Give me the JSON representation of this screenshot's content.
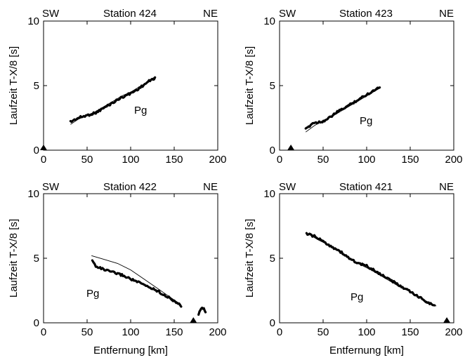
{
  "chart_data": [
    {
      "type": "line",
      "station": "Station 424",
      "left_dir": "SW",
      "right_dir": "NE",
      "phase_label": "Pg",
      "ylabel": "Laufzeit T-X/8 [s]",
      "xlabel": "",
      "xlim": [
        0,
        200
      ],
      "ylim": [
        0,
        10
      ],
      "xticks": [
        0,
        50,
        100,
        150,
        200
      ],
      "yticks": [
        0,
        5,
        10
      ],
      "source_marker_x": 0,
      "observed": [
        [
          31,
          2.2
        ],
        [
          40,
          2.5
        ],
        [
          50,
          2.7
        ],
        [
          60,
          2.9
        ],
        [
          70,
          3.3
        ],
        [
          80,
          3.7
        ],
        [
          90,
          4.1
        ],
        [
          100,
          4.4
        ],
        [
          110,
          4.8
        ],
        [
          120,
          5.3
        ],
        [
          128,
          5.6
        ]
      ],
      "model": [
        [
          31,
          2.0
        ],
        [
          40,
          2.4
        ],
        [
          50,
          2.7
        ],
        [
          60,
          3.0
        ],
        [
          70,
          3.4
        ],
        [
          80,
          3.8
        ],
        [
          90,
          4.2
        ],
        [
          100,
          4.5
        ],
        [
          110,
          4.9
        ],
        [
          120,
          5.3
        ],
        [
          128,
          5.7
        ]
      ]
    },
    {
      "type": "line",
      "station": "Station 423",
      "left_dir": "SW",
      "right_dir": "NE",
      "phase_label": "Pg",
      "ylabel": "Laufzeit T-X/8 [s]",
      "xlabel": "",
      "xlim": [
        0,
        200
      ],
      "ylim": [
        0,
        10
      ],
      "xticks": [
        0,
        50,
        100,
        150,
        200
      ],
      "yticks": [
        0,
        5,
        10
      ],
      "source_marker_x": 13,
      "observed": [
        [
          30,
          1.6
        ],
        [
          38,
          2.1
        ],
        [
          48,
          2.2
        ],
        [
          55,
          2.4
        ],
        [
          65,
          2.9
        ],
        [
          75,
          3.3
        ],
        [
          85,
          3.7
        ],
        [
          95,
          4.1
        ],
        [
          105,
          4.5
        ],
        [
          115,
          4.9
        ]
      ],
      "model": [
        [
          30,
          1.4
        ],
        [
          40,
          1.9
        ],
        [
          50,
          2.3
        ],
        [
          60,
          2.6
        ],
        [
          70,
          3.0
        ],
        [
          80,
          3.4
        ],
        [
          90,
          3.8
        ],
        [
          100,
          4.2
        ],
        [
          110,
          4.6
        ],
        [
          115,
          4.8
        ]
      ]
    },
    {
      "type": "line",
      "station": "Station 422",
      "left_dir": "SW",
      "right_dir": "NE",
      "phase_label": "Pg",
      "ylabel": "Laufzeit T-X/8 [s]",
      "xlabel": "Entfernung [km]",
      "xlim": [
        0,
        200
      ],
      "ylim": [
        0,
        10
      ],
      "xticks": [
        0,
        50,
        100,
        150,
        200
      ],
      "yticks": [
        0,
        5,
        10
      ],
      "source_marker_x": 172,
      "observed": [
        [
          56,
          4.8
        ],
        [
          60,
          4.4
        ],
        [
          70,
          4.1
        ],
        [
          80,
          3.9
        ],
        [
          90,
          3.7
        ],
        [
          100,
          3.4
        ],
        [
          110,
          3.1
        ],
        [
          120,
          2.8
        ],
        [
          130,
          2.5
        ],
        [
          140,
          2.1
        ],
        [
          150,
          1.7
        ],
        [
          158,
          1.3
        ]
      ],
      "observed_far": [
        [
          178,
          0.7
        ],
        [
          181,
          1.1
        ],
        [
          184,
          1.1
        ],
        [
          186,
          0.8
        ]
      ],
      "model": [
        [
          55,
          5.2
        ],
        [
          70,
          4.9
        ],
        [
          85,
          4.6
        ],
        [
          100,
          4.1
        ],
        [
          115,
          3.4
        ],
        [
          130,
          2.7
        ],
        [
          145,
          2.0
        ],
        [
          158,
          1.4
        ]
      ]
    },
    {
      "type": "line",
      "station": "Station 421",
      "left_dir": "SW",
      "right_dir": "NE",
      "phase_label": "Pg",
      "ylabel": "Laufzeit T-X/8 [s]",
      "xlabel": "Entfernung [km]",
      "xlim": [
        0,
        200
      ],
      "ylim": [
        0,
        10
      ],
      "xticks": [
        0,
        50,
        100,
        150,
        200
      ],
      "yticks": [
        0,
        5,
        10
      ],
      "source_marker_x": 192,
      "observed": [
        [
          31,
          6.9
        ],
        [
          40,
          6.7
        ],
        [
          50,
          6.3
        ],
        [
          60,
          5.9
        ],
        [
          70,
          5.5
        ],
        [
          80,
          5.0
        ],
        [
          90,
          4.6
        ],
        [
          100,
          4.4
        ],
        [
          110,
          4.0
        ],
        [
          120,
          3.6
        ],
        [
          130,
          3.2
        ],
        [
          140,
          2.8
        ],
        [
          150,
          2.4
        ],
        [
          160,
          2.0
        ],
        [
          170,
          1.6
        ],
        [
          178,
          1.3
        ]
      ],
      "model": [
        [
          30,
          7.0
        ],
        [
          45,
          6.4
        ],
        [
          60,
          5.9
        ],
        [
          75,
          5.2
        ],
        [
          90,
          4.6
        ],
        [
          105,
          4.1
        ],
        [
          120,
          3.5
        ],
        [
          135,
          2.9
        ],
        [
          150,
          2.4
        ],
        [
          165,
          1.8
        ],
        [
          180,
          1.3
        ]
      ]
    }
  ]
}
